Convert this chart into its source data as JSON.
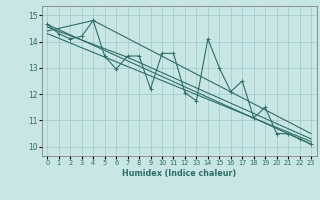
{
  "xlabel": "Humidex (Indice chaleur)",
  "xlim": [
    -0.5,
    23.5
  ],
  "ylim": [
    9.65,
    15.35
  ],
  "yticks": [
    10,
    11,
    12,
    13,
    14,
    15
  ],
  "xticks": [
    0,
    1,
    2,
    3,
    4,
    5,
    6,
    7,
    8,
    9,
    10,
    11,
    12,
    13,
    14,
    15,
    16,
    17,
    18,
    19,
    20,
    21,
    22,
    23
  ],
  "bg_color": "#c8e6e6",
  "grid_color": "#a0c8c8",
  "line_color": "#2e6e65",
  "main_series_x": [
    0,
    1,
    2,
    3,
    4,
    5,
    6,
    7,
    8,
    9,
    10,
    11,
    12,
    13,
    14,
    15,
    16,
    17,
    18,
    19,
    20,
    21,
    22,
    23
  ],
  "main_series_y": [
    14.65,
    14.3,
    14.1,
    14.2,
    14.8,
    13.45,
    12.95,
    13.45,
    13.45,
    12.2,
    13.55,
    13.55,
    12.05,
    11.75,
    14.1,
    13.0,
    12.1,
    12.5,
    11.1,
    11.5,
    10.5,
    10.5,
    10.3,
    10.1
  ],
  "trend1_x": [
    0,
    23
  ],
  "trend1_y": [
    14.65,
    10.1
  ],
  "trend2_x": [
    0,
    4,
    23
  ],
  "trend2_y": [
    14.4,
    14.8,
    10.5
  ],
  "trend3_x": [
    0,
    7,
    23
  ],
  "trend3_y": [
    14.55,
    13.4,
    10.3
  ],
  "trend4_x": [
    0,
    23
  ],
  "trend4_y": [
    14.3,
    10.2
  ]
}
